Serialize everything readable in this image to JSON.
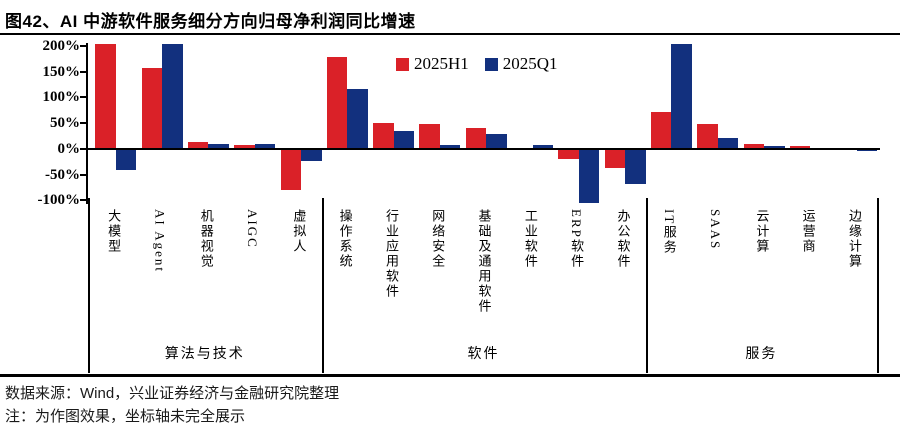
{
  "figure": {
    "title": "图42、AI 中游软件服务细分方向归母净利润同比增速",
    "source": "数据来源：Wind，兴业证券经济与金融研究院整理",
    "note": "注：为作图效果，坐标轴未完全展示"
  },
  "chart_data": {
    "type": "bar",
    "title": "AI 中游软件服务细分方向归母净利润同比增速",
    "unit": "%",
    "grid": false,
    "legend_position": "top-center",
    "y_ticks": [
      200,
      150,
      100,
      50,
      0,
      -50,
      -100
    ],
    "y_tick_labels": [
      "200%",
      "150%",
      "100%",
      "50%",
      "0%",
      "-50%",
      "-100%"
    ],
    "ylim_rendered": [
      -112,
      204
    ],
    "groups": [
      {
        "label": "算法与技术",
        "categories": [
          "大模型",
          "AI Agent",
          "机器视觉",
          "AIGC",
          "虚拟人"
        ]
      },
      {
        "label": "软件",
        "categories": [
          "操作系统",
          "行业应用软件",
          "网络安全",
          "基础及通用软件",
          "工业软件",
          "ERP软件",
          "办公软件"
        ]
      },
      {
        "label": "服务",
        "categories": [
          "IT服务",
          "SAAS",
          "云计算",
          "运营商",
          "边缘计算"
        ]
      }
    ],
    "categories": [
      "大模型",
      "AI Agent",
      "机器视觉",
      "AIGC",
      "虚拟人",
      "操作系统",
      "行业应用软件",
      "网络安全",
      "基础及通用软件",
      "工业软件",
      "ERP软件",
      "办公软件",
      "IT服务",
      "SAAS",
      "云计算",
      "运营商",
      "边缘计算"
    ],
    "series": [
      {
        "name": "2025H1",
        "color": "#da2128",
        "values": [
          204,
          157,
          13,
          8,
          -80,
          179,
          50,
          49,
          40,
          1,
          -20,
          -37,
          71,
          48,
          10,
          5,
          1
        ]
      },
      {
        "name": "2025Q1",
        "color": "#12307e",
        "values": [
          -41,
          204,
          9,
          9,
          -23,
          117,
          34,
          8,
          29,
          7,
          -106,
          -69,
          204,
          21,
          6,
          2,
          -4
        ]
      }
    ],
    "clipped_at_top": [
      {
        "series": "2025H1",
        "category": "大模型"
      },
      {
        "series": "2025Q1",
        "category": "AI Agent"
      },
      {
        "series": "2025Q1",
        "category": "IT服务"
      }
    ]
  }
}
